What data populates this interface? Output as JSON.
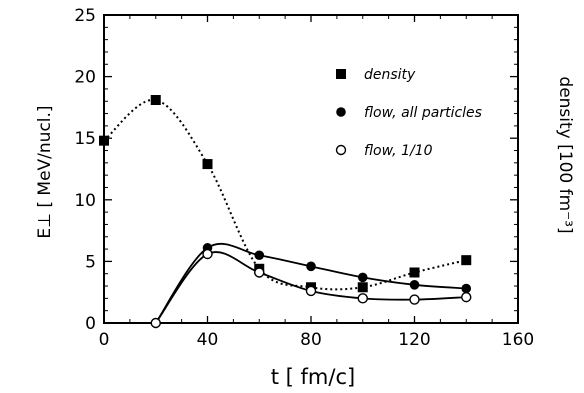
{
  "chart_data": {
    "type": "line",
    "x_label": "t [ fm/c]",
    "y_label": "E⊥ [ MeV/nucl.]",
    "y2_label": "density [100 fm⁻³]",
    "xlim": [
      0,
      160
    ],
    "ylim": [
      0,
      25
    ],
    "x_ticks": [
      0,
      40,
      80,
      120,
      160
    ],
    "y_ticks": [
      0,
      5,
      10,
      15,
      20,
      25
    ],
    "x_tick_labels": [
      "0",
      "40",
      "80",
      "120",
      "160"
    ],
    "y_tick_labels": [
      "0",
      "5",
      "10",
      "15",
      "20",
      "25"
    ],
    "grid": false,
    "legend_position": "upper-right",
    "series": [
      {
        "name": "density",
        "marker": "filled-square",
        "line": "dotted",
        "x": [
          0,
          20,
          40,
          60,
          80,
          100,
          120,
          140
        ],
        "y": [
          14.8,
          18.1,
          12.9,
          4.4,
          2.9,
          2.9,
          4.1,
          5.1
        ]
      },
      {
        "name": "flow, all particles",
        "marker": "filled-circle",
        "line": "solid",
        "x": [
          20,
          40,
          60,
          80,
          100,
          120,
          140
        ],
        "y": [
          0.0,
          6.1,
          5.5,
          4.6,
          3.7,
          3.1,
          2.8
        ]
      },
      {
        "name": "flow, 1/10",
        "marker": "open-circle",
        "line": "solid",
        "x": [
          20,
          40,
          60,
          80,
          100,
          120,
          140
        ],
        "y": [
          0.0,
          5.6,
          4.1,
          2.6,
          2.0,
          1.9,
          2.1
        ]
      }
    ]
  }
}
